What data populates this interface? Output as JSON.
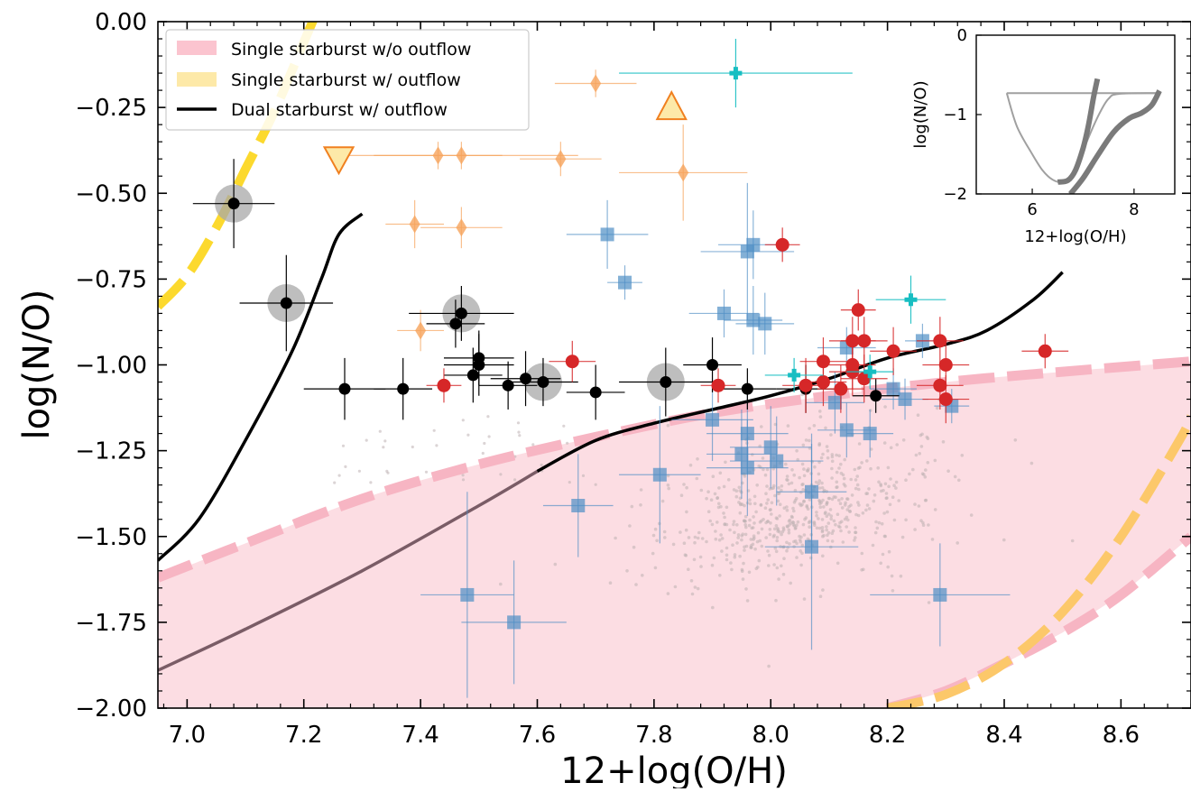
{
  "chart_data": {
    "type": "scatter",
    "xlabel": "12+log(O/H)",
    "ylabel": "log(N/O)",
    "xlim": [
      6.95,
      8.72
    ],
    "ylim": [
      -2.0,
      0.0
    ],
    "xticks": [
      7.0,
      7.2,
      7.4,
      7.6,
      7.8,
      8.0,
      8.2,
      8.4,
      8.6
    ],
    "xtick_labels": [
      "7.0",
      "7.2",
      "7.4",
      "7.6",
      "7.8",
      "8.0",
      "8.2",
      "8.4",
      "8.6"
    ],
    "yticks": [
      0.0,
      -0.25,
      -0.5,
      -0.75,
      -1.0,
      -1.25,
      -1.5,
      -1.75,
      -2.0
    ],
    "ytick_labels": [
      "0.00",
      "−0.25",
      "−0.50",
      "−0.75",
      "−1.00",
      "−1.25",
      "−1.50",
      "−1.75",
      "−2.00"
    ],
    "grid": false,
    "legend_position": "top-left",
    "legend": [
      {
        "label": "Single starburst w/o outflow",
        "color": "#fbc4cf",
        "style": "band"
      },
      {
        "label": "Single starburst w/ outflow",
        "color": "#fde9a8",
        "style": "band"
      },
      {
        "label": "Dual starburst w/ outflow",
        "color": "#000000",
        "style": "line"
      }
    ],
    "colors": {
      "pink_band": "#f7a3b8",
      "pink_dash": "#f7b5c3",
      "yellow_dash": "#fcd92e",
      "orange_dash": "#fcc86a",
      "black": "#000000",
      "dark_segment": "#7a5c66",
      "orange_diamond": "#f6a45c",
      "blue_square": "#4e8ec4",
      "red_circle": "#d62728",
      "cyan_plus": "#17bec2",
      "triangle_edge": "#f08020",
      "triangle_fill": "#fde9a8",
      "halo": "#a8a8a8",
      "background_dots": "#bdb0b3"
    },
    "pink_band_upper": [
      [
        6.95,
        -1.62
      ],
      [
        7.1,
        -1.52
      ],
      [
        7.3,
        -1.39
      ],
      [
        7.5,
        -1.29
      ],
      [
        7.7,
        -1.21
      ],
      [
        7.9,
        -1.14
      ],
      [
        8.1,
        -1.09
      ],
      [
        8.3,
        -1.05
      ],
      [
        8.5,
        -1.02
      ],
      [
        8.72,
        -0.99
      ]
    ],
    "pink_band_lower": [
      [
        8.2,
        -2.0
      ],
      [
        8.3,
        -1.95
      ],
      [
        8.4,
        -1.87
      ],
      [
        8.5,
        -1.78
      ],
      [
        8.6,
        -1.67
      ],
      [
        8.72,
        -1.5
      ]
    ],
    "yellow_dash_left": [
      [
        6.95,
        -0.83
      ],
      [
        7.0,
        -0.74
      ],
      [
        7.05,
        -0.6
      ],
      [
        7.1,
        -0.43
      ],
      [
        7.15,
        -0.26
      ],
      [
        7.2,
        -0.06
      ],
      [
        7.22,
        0.02
      ]
    ],
    "yellow_dash_right": [
      [
        8.2,
        -2.0
      ],
      [
        8.3,
        -1.96
      ],
      [
        8.4,
        -1.87
      ],
      [
        8.5,
        -1.72
      ],
      [
        8.6,
        -1.5
      ],
      [
        8.7,
        -1.22
      ],
      [
        8.72,
        -1.15
      ]
    ],
    "dual_starburst_curve": [
      [
        6.95,
        -1.57
      ],
      [
        7.02,
        -1.45
      ],
      [
        7.1,
        -1.22
      ],
      [
        7.18,
        -0.96
      ],
      [
        7.23,
        -0.75
      ],
      [
        7.26,
        -0.62
      ],
      [
        7.3,
        -0.56
      ]
    ],
    "dual_starburst_curve2": [
      [
        6.95,
        -1.89
      ],
      [
        7.1,
        -1.77
      ],
      [
        7.3,
        -1.6
      ],
      [
        7.5,
        -1.41
      ],
      [
        7.6,
        -1.31
      ],
      [
        7.7,
        -1.22
      ],
      [
        7.8,
        -1.17
      ],
      [
        7.9,
        -1.13
      ],
      [
        8.0,
        -1.09
      ],
      [
        8.1,
        -1.04
      ],
      [
        8.2,
        -0.98
      ],
      [
        8.3,
        -0.94
      ],
      [
        8.37,
        -0.9
      ],
      [
        8.45,
        -0.81
      ],
      [
        8.5,
        -0.73
      ]
    ],
    "dual_dark_segment_xmax": 7.65,
    "black_points": [
      {
        "x": 7.08,
        "y": -0.53,
        "xerr": 0.07,
        "yerr": 0.13,
        "halo": true
      },
      {
        "x": 7.17,
        "y": -0.82,
        "xerr": 0.08,
        "yerr": 0.14,
        "halo": true
      },
      {
        "x": 7.27,
        "y": -1.07,
        "xerr": 0.07,
        "yerr": 0.09
      },
      {
        "x": 7.37,
        "y": -1.07,
        "xerr": 0.05,
        "yerr": 0.09
      },
      {
        "x": 7.46,
        "y": -0.88,
        "xerr": 0.05,
        "yerr": 0.07
      },
      {
        "x": 7.47,
        "y": -0.85,
        "xerr": 0.09,
        "yerr": 0.08,
        "halo": true
      },
      {
        "x": 7.49,
        "y": -1.03,
        "xerr": 0.05,
        "yerr": 0.08
      },
      {
        "x": 7.5,
        "y": -0.98,
        "xerr": 0.06,
        "yerr": 0.08
      },
      {
        "x": 7.5,
        "y": -1.0,
        "xerr": 0.06,
        "yerr": 0.09
      },
      {
        "x": 7.55,
        "y": -1.06,
        "xerr": 0.05,
        "yerr": 0.07
      },
      {
        "x": 7.58,
        "y": -1.04,
        "xerr": 0.06,
        "yerr": 0.08
      },
      {
        "x": 7.61,
        "y": -1.05,
        "xerr": 0.06,
        "yerr": 0.07,
        "halo": true
      },
      {
        "x": 7.7,
        "y": -1.08,
        "xerr": 0.05,
        "yerr": 0.08
      },
      {
        "x": 7.82,
        "y": -1.05,
        "xerr": 0.08,
        "yerr": 0.1,
        "halo": true
      },
      {
        "x": 7.9,
        "y": -1.0,
        "xerr": 0.05,
        "yerr": 0.08
      },
      {
        "x": 7.96,
        "y": -1.07,
        "xerr": 0.05,
        "yerr": 0.06
      },
      {
        "x": 8.06,
        "y": -1.07,
        "xerr": 0.05,
        "yerr": 0.07
      },
      {
        "x": 8.18,
        "y": -1.09,
        "xerr": 0.04,
        "yerr": 0.05
      }
    ],
    "orange_diamonds": [
      {
        "x": 7.43,
        "y": -0.39,
        "xerr": 0.11,
        "yerr": 0.04
      },
      {
        "x": 7.47,
        "y": -0.6,
        "xerr": 0.07,
        "yerr": 0.06
      },
      {
        "x": 7.39,
        "y": -0.59,
        "xerr": 0.05,
        "yerr": 0.07
      },
      {
        "x": 7.4,
        "y": -0.9,
        "xerr": 0.04,
        "yerr": 0.06
      },
      {
        "x": 7.47,
        "y": -0.39,
        "xerr": 0.2,
        "yerr": 0.04
      },
      {
        "x": 7.64,
        "y": -0.4,
        "xerr": 0.07,
        "yerr": 0.05
      },
      {
        "x": 7.7,
        "y": -0.18,
        "xerr": 0.07,
        "yerr": 0.04
      },
      {
        "x": 7.85,
        "y": -0.44,
        "xerr": 0.11,
        "yerr": 0.14
      }
    ],
    "orange_triangles": [
      {
        "x": 7.26,
        "y": -0.4,
        "dir": "down",
        "xerr": 0.05,
        "yerr": 0.06
      },
      {
        "x": 7.83,
        "y": -0.25,
        "dir": "up",
        "xerr": 0.05,
        "yerr": 0.06
      }
    ],
    "blue_squares": [
      {
        "x": 7.72,
        "y": -0.62,
        "xerr": 0.07,
        "yerr": 0.1
      },
      {
        "x": 7.75,
        "y": -0.76,
        "xerr": 0.03,
        "yerr": 0.05
      },
      {
        "x": 7.92,
        "y": -0.85,
        "xerr": 0.06,
        "yerr": 0.07
      },
      {
        "x": 7.96,
        "y": -0.67,
        "xerr": 0.08,
        "yerr": 0.2
      },
      {
        "x": 7.97,
        "y": -0.65,
        "xerr": 0.06,
        "yerr": 0.1
      },
      {
        "x": 7.97,
        "y": -0.87,
        "xerr": 0.05,
        "yerr": 0.1
      },
      {
        "x": 7.99,
        "y": -0.88,
        "xerr": 0.05,
        "yerr": 0.09
      },
      {
        "x": 7.9,
        "y": -1.16,
        "xerr": 0.07,
        "yerr": 0.12
      },
      {
        "x": 7.96,
        "y": -1.2,
        "xerr": 0.07,
        "yerr": 0.12
      },
      {
        "x": 7.95,
        "y": -1.26,
        "xerr": 0.06,
        "yerr": 0.13
      },
      {
        "x": 7.96,
        "y": -1.3,
        "xerr": 0.07,
        "yerr": 0.14
      },
      {
        "x": 8.0,
        "y": -1.24,
        "xerr": 0.07,
        "yerr": 0.12
      },
      {
        "x": 8.01,
        "y": -1.28,
        "xerr": 0.08,
        "yerr": 0.13
      },
      {
        "x": 7.81,
        "y": -1.32,
        "xerr": 0.07,
        "yerr": 0.2
      },
      {
        "x": 7.67,
        "y": -1.41,
        "xerr": 0.06,
        "yerr": 0.15
      },
      {
        "x": 8.07,
        "y": -1.37,
        "xerr": 0.06,
        "yerr": 0.17
      },
      {
        "x": 8.07,
        "y": -1.53,
        "xerr": 0.08,
        "yerr": 0.3
      },
      {
        "x": 8.11,
        "y": -1.11,
        "xerr": 0.05,
        "yerr": 0.09
      },
      {
        "x": 8.13,
        "y": -1.19,
        "xerr": 0.05,
        "yerr": 0.08
      },
      {
        "x": 8.17,
        "y": -1.2,
        "xerr": 0.04,
        "yerr": 0.07
      },
      {
        "x": 8.13,
        "y": -0.95,
        "xerr": 0.05,
        "yerr": 0.06
      },
      {
        "x": 8.21,
        "y": -1.07,
        "xerr": 0.04,
        "yerr": 0.06
      },
      {
        "x": 8.23,
        "y": -1.1,
        "xerr": 0.04,
        "yerr": 0.06
      },
      {
        "x": 8.26,
        "y": -0.93,
        "xerr": 0.03,
        "yerr": 0.05
      },
      {
        "x": 8.31,
        "y": -1.12,
        "xerr": 0.03,
        "yerr": 0.05
      },
      {
        "x": 7.48,
        "y": -1.67,
        "xerr": 0.08,
        "yerr": 0.3
      },
      {
        "x": 7.56,
        "y": -1.75,
        "xerr": 0.09,
        "yerr": 0.18
      },
      {
        "x": 8.29,
        "y": -1.67,
        "xerr": 0.12,
        "yerr": 0.15
      }
    ],
    "red_circles": [
      {
        "x": 7.44,
        "y": -1.06,
        "xerr": 0.03,
        "yerr": 0.05
      },
      {
        "x": 7.66,
        "y": -0.99,
        "xerr": 0.04,
        "yerr": 0.06
      },
      {
        "x": 7.91,
        "y": -1.06,
        "xerr": 0.03,
        "yerr": 0.05
      },
      {
        "x": 8.02,
        "y": -0.65,
        "xerr": 0.03,
        "yerr": 0.05
      },
      {
        "x": 8.06,
        "y": -1.06,
        "xerr": 0.04,
        "yerr": 0.08
      },
      {
        "x": 8.09,
        "y": -0.99,
        "xerr": 0.04,
        "yerr": 0.07
      },
      {
        "x": 8.09,
        "y": -1.05,
        "xerr": 0.04,
        "yerr": 0.07
      },
      {
        "x": 8.12,
        "y": -1.07,
        "xerr": 0.04,
        "yerr": 0.07
      },
      {
        "x": 8.14,
        "y": -0.93,
        "xerr": 0.04,
        "yerr": 0.07
      },
      {
        "x": 8.15,
        "y": -0.84,
        "xerr": 0.03,
        "yerr": 0.06
      },
      {
        "x": 8.14,
        "y": -1.0,
        "xerr": 0.04,
        "yerr": 0.07
      },
      {
        "x": 8.14,
        "y": -1.02,
        "xerr": 0.04,
        "yerr": 0.07
      },
      {
        "x": 8.16,
        "y": -0.93,
        "xerr": 0.04,
        "yerr": 0.07
      },
      {
        "x": 8.16,
        "y": -1.04,
        "xerr": 0.04,
        "yerr": 0.07
      },
      {
        "x": 8.21,
        "y": -0.96,
        "xerr": 0.04,
        "yerr": 0.07
      },
      {
        "x": 8.29,
        "y": -0.93,
        "xerr": 0.04,
        "yerr": 0.07
      },
      {
        "x": 8.29,
        "y": -1.06,
        "xerr": 0.04,
        "yerr": 0.07
      },
      {
        "x": 8.3,
        "y": -1.0,
        "xerr": 0.04,
        "yerr": 0.07
      },
      {
        "x": 8.3,
        "y": -1.1,
        "xerr": 0.04,
        "yerr": 0.07
      },
      {
        "x": 8.47,
        "y": -0.96,
        "xerr": 0.04,
        "yerr": 0.05
      }
    ],
    "cyan_plus": [
      {
        "x": 7.94,
        "y": -0.15,
        "xerr": 0.2,
        "yerr": 0.1
      },
      {
        "x": 8.04,
        "y": -1.03,
        "xerr": 0.05,
        "yerr": 0.05
      },
      {
        "x": 8.17,
        "y": -1.02,
        "xerr": 0.04,
        "yerr": 0.05
      },
      {
        "x": 8.24,
        "y": -0.81,
        "xerr": 0.06,
        "yerr": 0.07
      }
    ],
    "inset": {
      "xlabel": "12+log(O/H)",
      "ylabel": "log(N/O)",
      "xlim": [
        4.9,
        8.8
      ],
      "ylim": [
        -2.0,
        0.0
      ],
      "xticks": [
        6,
        8
      ],
      "xtick_labels": [
        "6",
        "8"
      ],
      "yticks": [
        0,
        -1,
        -2
      ],
      "ytick_labels": [
        "0",
        "−1",
        "−2"
      ],
      "thin_curve": [
        [
          5.5,
          -0.73
        ],
        [
          5.7,
          -1.15
        ],
        [
          6.0,
          -1.5
        ],
        [
          6.2,
          -1.7
        ],
        [
          6.4,
          -1.82
        ],
        [
          6.6,
          -1.85
        ],
        [
          6.8,
          -1.75
        ],
        [
          7.0,
          -1.45
        ],
        [
          7.2,
          -1.15
        ],
        [
          7.35,
          -0.95
        ],
        [
          7.5,
          -0.8
        ],
        [
          7.7,
          -0.74
        ],
        [
          8.5,
          -0.73
        ]
      ],
      "thin_top": [
        [
          5.5,
          -0.73
        ],
        [
          8.5,
          -0.73
        ]
      ],
      "thick_curve_a": [
        [
          6.5,
          -1.85
        ],
        [
          6.7,
          -1.83
        ],
        [
          6.85,
          -1.7
        ],
        [
          7.0,
          -1.42
        ],
        [
          7.1,
          -1.15
        ],
        [
          7.2,
          -0.8
        ],
        [
          7.28,
          -0.55
        ]
      ],
      "thick_curve_b": [
        [
          6.75,
          -2.0
        ],
        [
          7.0,
          -1.8
        ],
        [
          7.3,
          -1.5
        ],
        [
          7.6,
          -1.22
        ],
        [
          7.9,
          -1.05
        ],
        [
          8.15,
          -0.98
        ],
        [
          8.35,
          -0.88
        ],
        [
          8.5,
          -0.7
        ]
      ]
    }
  }
}
